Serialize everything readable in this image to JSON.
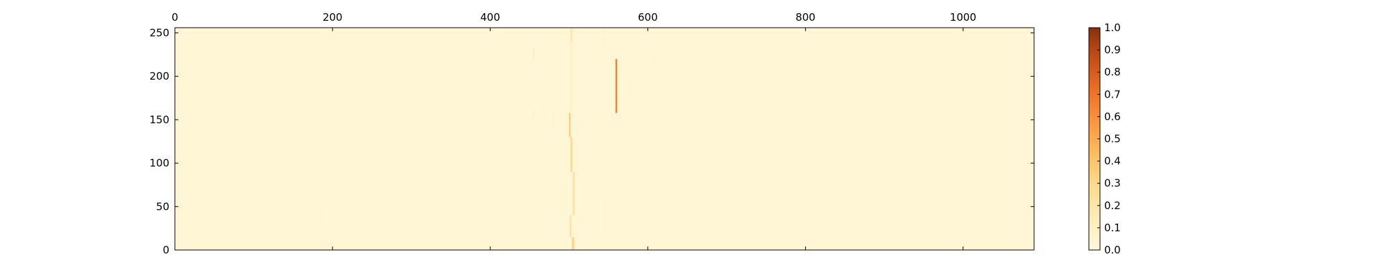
{
  "chart_data": {
    "type": "heatmap",
    "title": "",
    "xlabel": "",
    "ylabel": "",
    "xlim": [
      0,
      1090
    ],
    "ylim": [
      0,
      256
    ],
    "x_ticks": [
      0,
      200,
      400,
      600,
      800,
      1000
    ],
    "y_ticks": [
      0,
      50,
      100,
      150,
      200,
      250
    ],
    "x_axis_position": "top",
    "colormap": "Oranges-like (light yellow to dark brown)",
    "colorbar": {
      "range": [
        0.0,
        1.0
      ],
      "ticks": [
        "0.0",
        "0.1",
        "0.2",
        "0.3",
        "0.4",
        "0.5",
        "0.6",
        "0.7",
        "0.8",
        "0.9",
        "1.0"
      ]
    },
    "background_value": 0.03,
    "features": [
      {
        "x": 505,
        "y": [
          0,
          15
        ],
        "value": 0.35
      },
      {
        "x": 502,
        "y": [
          15,
          40
        ],
        "value": 0.22
      },
      {
        "x": 506,
        "y": [
          40,
          90
        ],
        "value": 0.25
      },
      {
        "x": 503,
        "y": [
          90,
          130
        ],
        "value": 0.3
      },
      {
        "x": 501,
        "y": [
          130,
          158
        ],
        "value": 0.35
      },
      {
        "x": 503,
        "y": [
          158,
          240
        ],
        "value": 0.1
      },
      {
        "x": 503,
        "y": [
          240,
          256
        ],
        "value": 0.2
      },
      {
        "x": 560,
        "y": [
          158,
          220
        ],
        "value": 0.65
      },
      {
        "x": 455,
        "y": [
          220,
          232
        ],
        "value": 0.12
      },
      {
        "x": 455,
        "y": [
          152,
          162
        ],
        "value": 0.08
      },
      {
        "x": 545,
        "y": [
          240,
          256
        ],
        "value": 0.07
      },
      {
        "x": 608,
        "y": [
          210,
          222
        ],
        "value": 0.06
      },
      {
        "x": 545,
        "y": [
          20,
          60
        ],
        "value": 0.05
      },
      {
        "x": 480,
        "y": [
          140,
          160
        ],
        "value": 0.06
      },
      {
        "x": 198,
        "y": [
          0,
          15
        ],
        "value": 0.06
      },
      {
        "x": 188,
        "y": [
          30,
          55
        ],
        "value": 0.05
      }
    ]
  },
  "colors": {
    "axis": "#000000",
    "colormap_stops": [
      "#fff8df",
      "#fff1c2",
      "#fee6a6",
      "#fed98a",
      "#fec56a",
      "#fdab4f",
      "#fa8f3c",
      "#ef7428",
      "#d85c1c",
      "#b84612",
      "#86300f"
    ]
  }
}
